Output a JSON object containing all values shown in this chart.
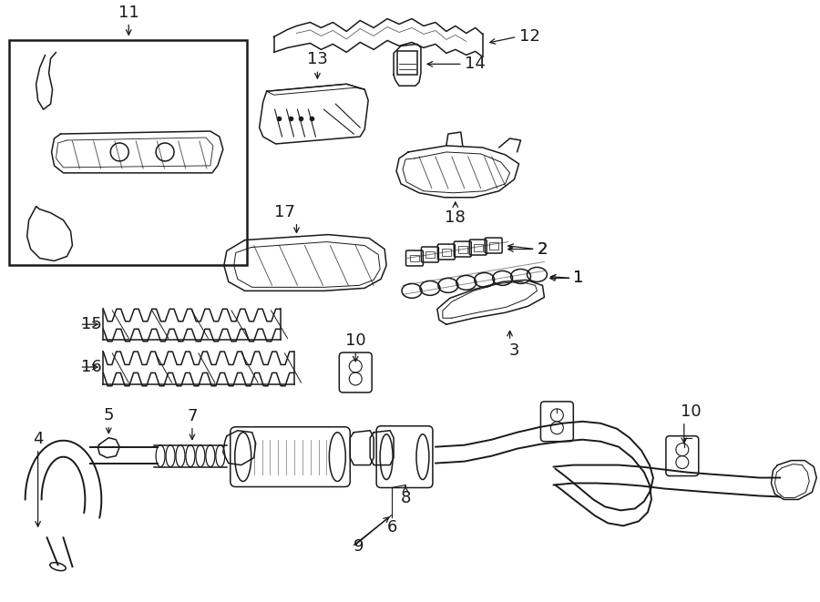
{
  "bg_color": "#ffffff",
  "line_color": "#1a1a1a",
  "figsize": [
    9.0,
    6.61
  ],
  "dpi": 100,
  "lw": 1.1,
  "font_size": 13
}
